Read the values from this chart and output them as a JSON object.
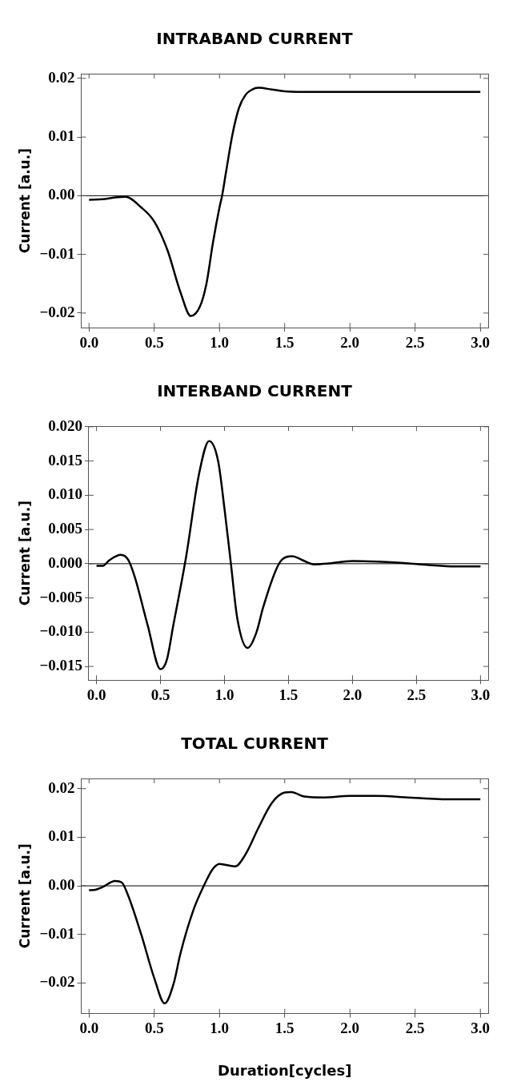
{
  "chart_data": [
    {
      "type": "line",
      "title": "INTRABAND CURRENT",
      "ylabel": "Current [a.u.]",
      "xlim": [
        -0.06,
        3.06
      ],
      "ylim": [
        -0.0225,
        0.0208
      ],
      "xticks": [
        {
          "value": 0,
          "label": "0.0"
        },
        {
          "value": 0.5,
          "label": "0.5"
        },
        {
          "value": 1,
          "label": "1.0"
        },
        {
          "value": 1.5,
          "label": "1.5"
        },
        {
          "value": 2,
          "label": "2.0"
        },
        {
          "value": 2.5,
          "label": "2.5"
        },
        {
          "value": 3,
          "label": "3.0"
        }
      ],
      "yticks": [
        {
          "value": -0.02,
          "label": "−0.02"
        },
        {
          "value": -0.01,
          "label": "−0.01"
        },
        {
          "value": 0,
          "label": "0.00"
        },
        {
          "value": 0.01,
          "label": "0.01"
        },
        {
          "value": 0.02,
          "label": "0.02"
        }
      ],
      "ref_lines": [
        {
          "axis": "y",
          "value": 0,
          "color": "#000000"
        }
      ],
      "grid": false,
      "legend": false,
      "marker": "none",
      "line_style": "solid",
      "series": [
        {
          "color": "#000000",
          "x": [
            0,
            0.1,
            0.2,
            0.28,
            0.4,
            0.5,
            0.6,
            0.7,
            0.78,
            0.85,
            0.9,
            0.95,
            1.0,
            1.02,
            1.05,
            1.1,
            1.15,
            1.2,
            1.25,
            1.3,
            1.4,
            1.5,
            1.6,
            2.0,
            2.5,
            3.0
          ],
          "values": [
            -0.0007,
            -0.0006,
            -0.0003,
            -0.0002,
            -0.002,
            -0.0044,
            -0.0092,
            -0.0164,
            -0.0205,
            -0.0189,
            -0.015,
            -0.008,
            -0.002,
            0.0,
            0.004,
            0.0105,
            0.015,
            0.0172,
            0.0181,
            0.0184,
            0.0181,
            0.0178,
            0.0177,
            0.0177,
            0.0177,
            0.0177
          ]
        }
      ]
    },
    {
      "type": "line",
      "title": "INTERBAND CURRENT",
      "ylabel": "Current [a.u.]",
      "xlim": [
        -0.06,
        3.06
      ],
      "ylim": [
        -0.017,
        0.0201
      ],
      "xticks": [
        {
          "value": 0,
          "label": "0.0"
        },
        {
          "value": 0.5,
          "label": "0.5"
        },
        {
          "value": 1,
          "label": "1.0"
        },
        {
          "value": 1.5,
          "label": "1.5"
        },
        {
          "value": 2,
          "label": "2.0"
        },
        {
          "value": 2.5,
          "label": "2.5"
        },
        {
          "value": 3,
          "label": "3.0"
        }
      ],
      "yticks": [
        {
          "value": -0.015,
          "label": "−0.015"
        },
        {
          "value": -0.01,
          "label": "−0.010"
        },
        {
          "value": -0.005,
          "label": "−0.005"
        },
        {
          "value": 0,
          "label": "0.000"
        },
        {
          "value": 0.005,
          "label": "0.005"
        },
        {
          "value": 0.01,
          "label": "0.010"
        },
        {
          "value": 0.015,
          "label": "0.015"
        },
        {
          "value": 0.02,
          "label": "0.020"
        }
      ],
      "ref_lines": [
        {
          "axis": "y",
          "value": 0,
          "color": "#000000"
        }
      ],
      "grid": false,
      "legend": false,
      "marker": "none",
      "line_style": "solid",
      "series": [
        {
          "color": "#000000",
          "x": [
            0,
            0.05,
            0.1,
            0.19,
            0.25,
            0.3,
            0.4,
            0.5,
            0.55,
            0.6,
            0.7,
            0.8,
            0.88,
            0.95,
            1.0,
            1.05,
            1.1,
            1.18,
            1.25,
            1.3,
            1.4,
            1.45,
            1.53,
            1.6,
            1.7,
            1.8,
            2.0,
            2.2,
            2.4,
            2.6,
            2.8,
            3.0
          ],
          "values": [
            -0.0003,
            -0.0003,
            0.0005,
            0.0013,
            0.0005,
            -0.002,
            -0.009,
            -0.0154,
            -0.014,
            -0.009,
            0.001,
            0.013,
            0.0179,
            0.015,
            0.008,
            0.0,
            -0.008,
            -0.0123,
            -0.01,
            -0.0065,
            -0.001,
            0.0006,
            0.0011,
            0.0006,
            -0.0001,
            0.0,
            0.0004,
            0.0003,
            0.0001,
            -0.0002,
            -0.0004,
            -0.0004
          ]
        }
      ]
    },
    {
      "type": "line",
      "title": "TOTAL CURRENT",
      "xlabel": "Duration[cycles]",
      "ylabel": "Current [a.u.]",
      "xlim": [
        -0.06,
        3.06
      ],
      "ylim": [
        -0.0263,
        0.0221
      ],
      "xticks": [
        {
          "value": 0,
          "label": "0.0"
        },
        {
          "value": 0.5,
          "label": "0.5"
        },
        {
          "value": 1,
          "label": "1.0"
        },
        {
          "value": 1.5,
          "label": "1.5"
        },
        {
          "value": 2,
          "label": "2.0"
        },
        {
          "value": 2.5,
          "label": "2.5"
        },
        {
          "value": 3,
          "label": "3.0"
        }
      ],
      "yticks": [
        {
          "value": -0.02,
          "label": "−0.02"
        },
        {
          "value": -0.01,
          "label": "−0.01"
        },
        {
          "value": 0,
          "label": "0.00"
        },
        {
          "value": 0.01,
          "label": "0.01"
        },
        {
          "value": 0.02,
          "label": "0.02"
        }
      ],
      "ref_lines": [
        {
          "axis": "y",
          "value": 0,
          "color": "#000000"
        }
      ],
      "grid": false,
      "legend": false,
      "marker": "none",
      "line_style": "solid",
      "series": [
        {
          "color": "#000000",
          "x": [
            0,
            0.05,
            0.1,
            0.2,
            0.25,
            0.3,
            0.4,
            0.5,
            0.58,
            0.65,
            0.7,
            0.8,
            0.88,
            0.95,
            1.0,
            1.05,
            1.12,
            1.2,
            1.3,
            1.4,
            1.5,
            1.55,
            1.65,
            1.8,
            2.0,
            2.2,
            2.5,
            2.8,
            3.0
          ],
          "values": [
            -0.0009,
            -0.0008,
            -0.0003,
            0.001,
            0.0007,
            -0.002,
            -0.01,
            -0.019,
            -0.0242,
            -0.02,
            -0.014,
            -0.005,
            0.0,
            0.0035,
            0.0045,
            0.0043,
            0.004,
            0.0065,
            0.012,
            0.017,
            0.0192,
            0.0193,
            0.0184,
            0.0182,
            0.0185,
            0.0185,
            0.0181,
            0.0178,
            0.0178
          ]
        }
      ]
    }
  ]
}
